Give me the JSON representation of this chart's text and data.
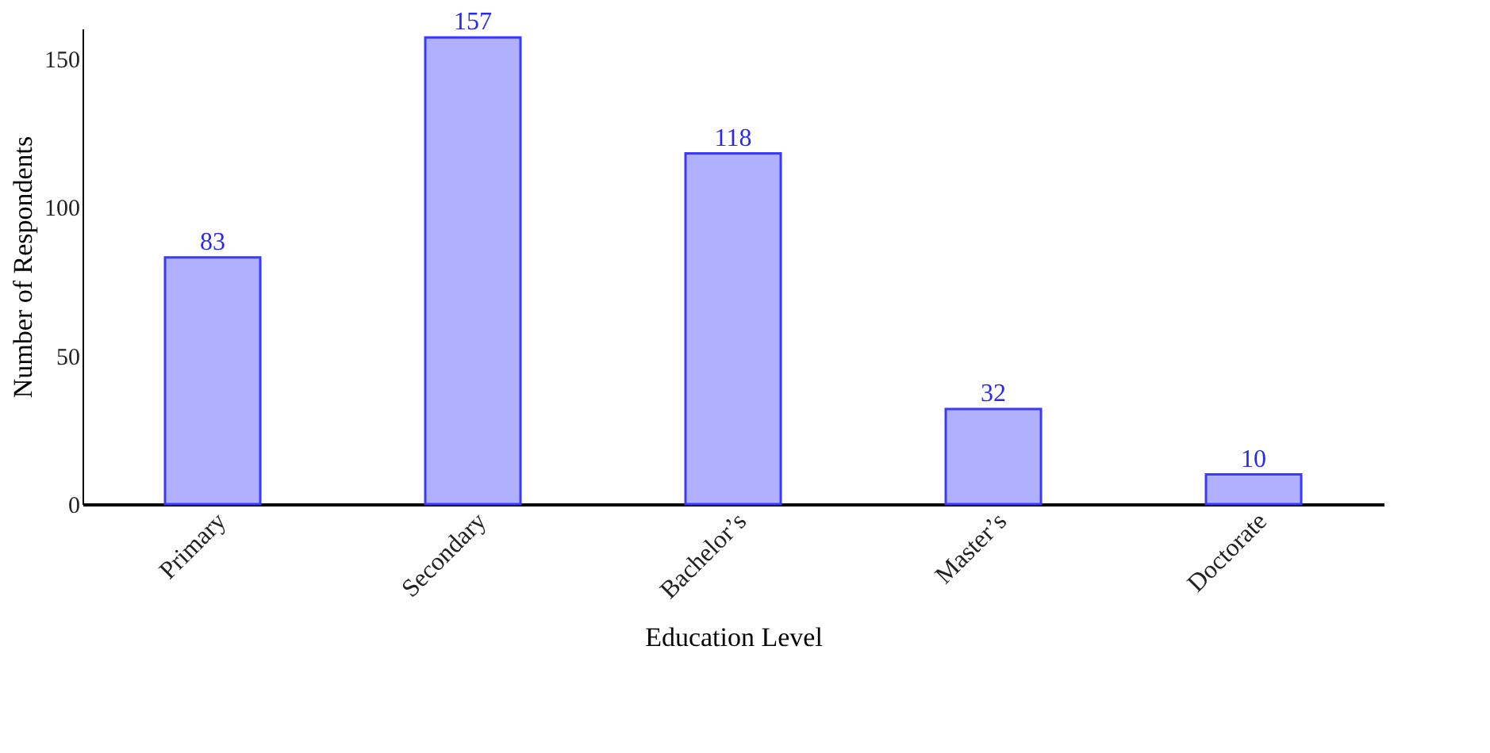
{
  "chart_data": {
    "type": "bar",
    "xlabel": "Education Level",
    "ylabel": "Number of Respondents",
    "categories": [
      "Primary",
      "Secondary",
      "Bachelor’s",
      "Master’s",
      "Doctorate"
    ],
    "values": [
      83,
      157,
      118,
      32,
      10
    ],
    "color": "#b0b0ff",
    "ylim": [
      0,
      160
    ],
    "yticks": [
      0,
      50,
      100,
      150
    ],
    "grid": false,
    "data_labels": true
  }
}
